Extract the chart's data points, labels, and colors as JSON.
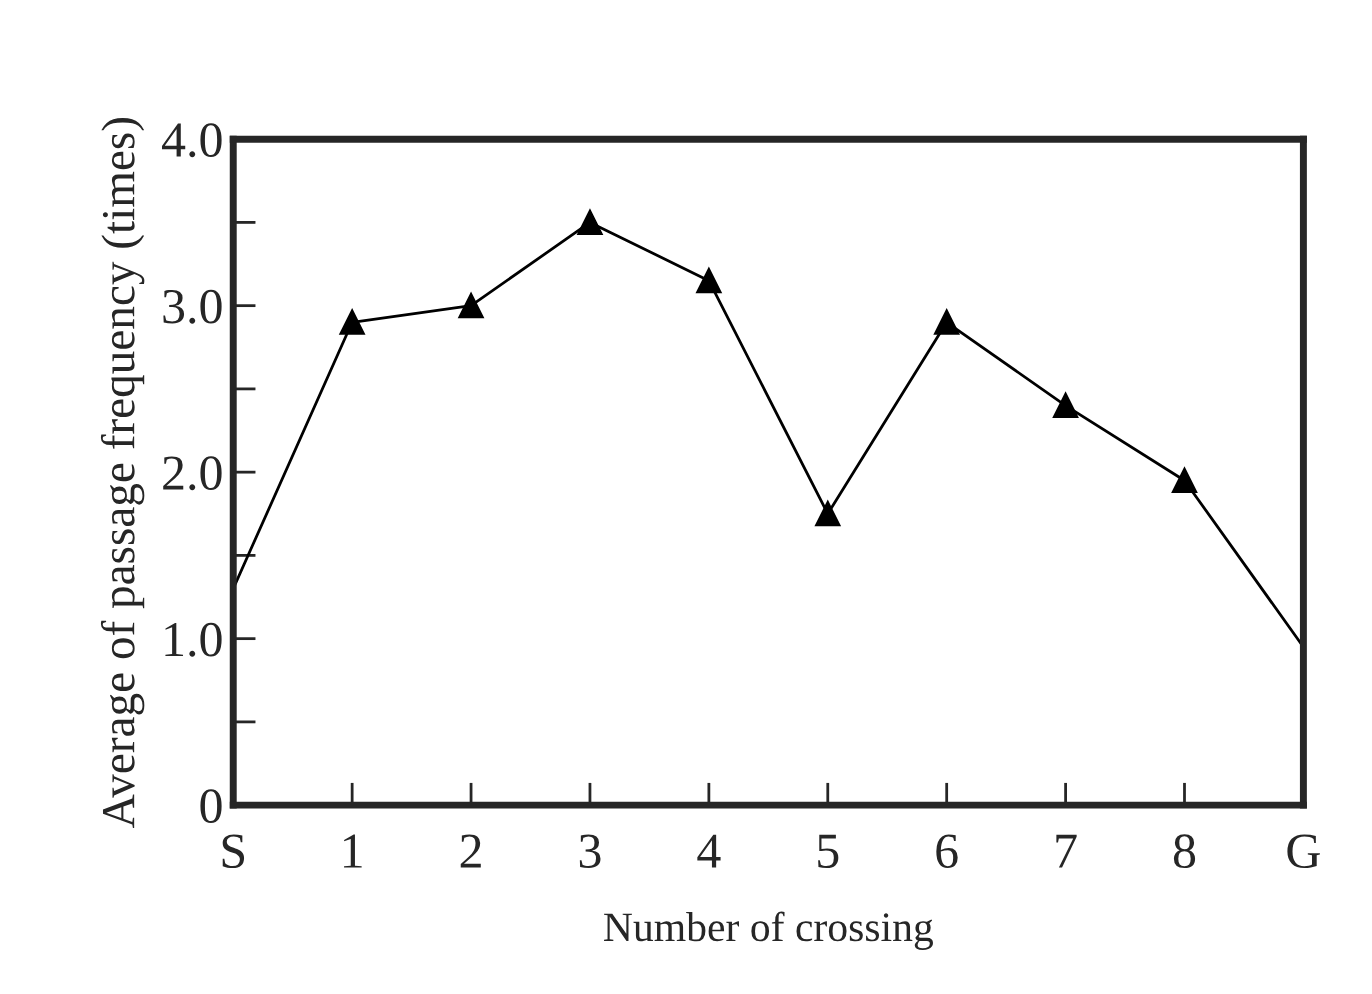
{
  "chart_data": {
    "type": "line",
    "xlabel": "Number of crossing",
    "ylabel": "Average of passage frequency (times)",
    "categories": [
      "S",
      "1",
      "2",
      "3",
      "4",
      "5",
      "6",
      "7",
      "8",
      "G"
    ],
    "series": [
      {
        "color": "#000000",
        "values": [
          1.3,
          2.9,
          3.0,
          3.5,
          3.15,
          1.75,
          2.9,
          2.4,
          1.95,
          0.95
        ]
      }
    ],
    "ylim": [
      0,
      4.0
    ],
    "yticks": [
      {
        "value": 0,
        "label": "0"
      },
      {
        "value": 0.5,
        "label": null
      },
      {
        "value": 1.0,
        "label": "1.0"
      },
      {
        "value": 1.5,
        "label": null
      },
      {
        "value": 2.0,
        "label": "2.0"
      },
      {
        "value": 2.5,
        "label": null
      },
      {
        "value": 3.0,
        "label": "3.0"
      },
      {
        "value": 3.5,
        "label": null
      },
      {
        "value": 4.0,
        "label": "4.0"
      }
    ],
    "marker": "triangle",
    "line_style": "solid",
    "grid": false
  }
}
